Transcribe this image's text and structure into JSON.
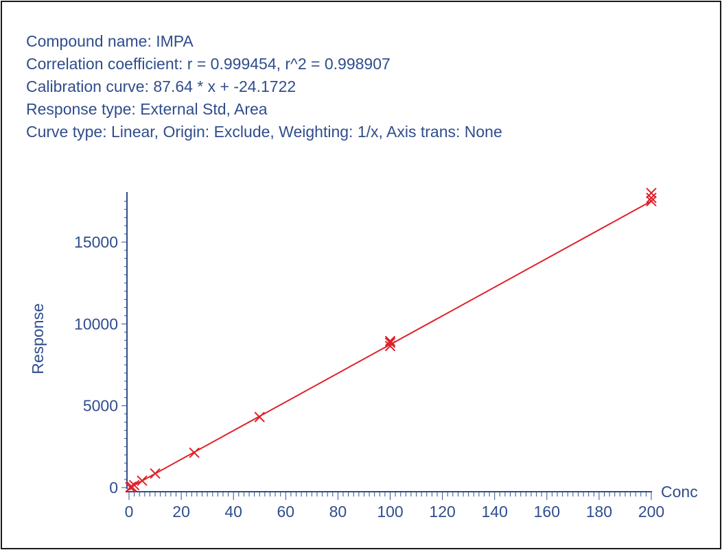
{
  "header": {
    "compound": "Compound name: IMPA",
    "correlation": "Correlation coefficient: r = 0.999454, r^2 = 0.998907",
    "calibration": "Calibration curve: 87.64 * x + -24.1722",
    "response_type": "Response type: External Std, Area",
    "curve_type": "Curve type: Linear, Origin: Exclude, Weighting: 1/x, Axis trans: None"
  },
  "colors": {
    "axis": "#2f4d8c",
    "text": "#2f4d8c",
    "series": "#e0202a",
    "frame": "#1a1a1a"
  },
  "chart_data": {
    "type": "scatter",
    "title": "",
    "xlabel": "Conc",
    "ylabel": "Response",
    "xlim": [
      0,
      200
    ],
    "ylim": [
      0,
      17500
    ],
    "x_ticks": [
      0,
      20,
      40,
      60,
      80,
      100,
      120,
      140,
      160,
      180,
      200
    ],
    "y_ticks": [
      0,
      5000,
      10000,
      15000
    ],
    "grid": false,
    "series": [
      {
        "marker": "x",
        "points": [
          {
            "x": 0.5,
            "y": 20
          },
          {
            "x": 1,
            "y": 60
          },
          {
            "x": 2,
            "y": 150
          },
          {
            "x": 5,
            "y": 420
          },
          {
            "x": 10,
            "y": 860
          },
          {
            "x": 25,
            "y": 2130
          },
          {
            "x": 50,
            "y": 4310
          },
          {
            "x": 100,
            "y": 8650
          },
          {
            "x": 100,
            "y": 8850
          },
          {
            "x": 100,
            "y": 8950
          },
          {
            "x": 200,
            "y": 17500
          },
          {
            "x": 200,
            "y": 17700
          },
          {
            "x": 200,
            "y": 18000
          }
        ]
      }
    ],
    "fit_line": {
      "slope": 87.64,
      "intercept": -24.1722,
      "x_range": [
        0,
        200
      ]
    }
  }
}
